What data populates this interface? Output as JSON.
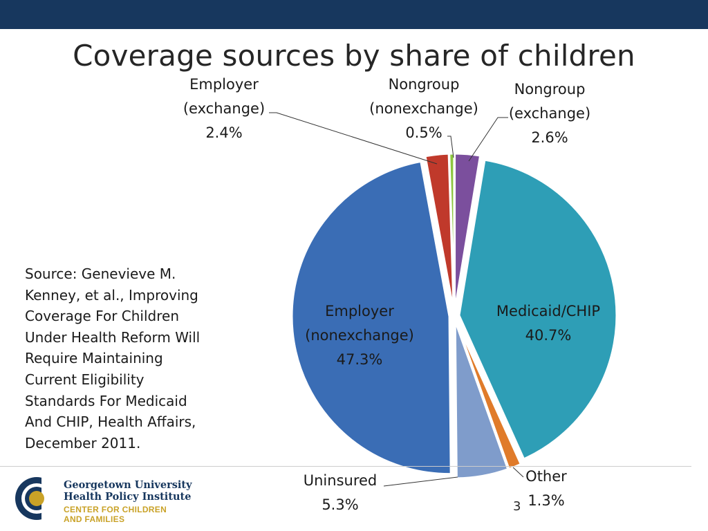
{
  "header": {
    "title": "Coverage sources by share of children"
  },
  "chart_data": {
    "type": "pie",
    "title": "Coverage sources by share of children",
    "slices": [
      {
        "label_lines": [
          "Nongroup",
          "(exchange)"
        ],
        "value": 2.6,
        "value_label": "2.6%",
        "color": "#7b4f9d"
      },
      {
        "label_lines": [
          "Medicaid/CHIP"
        ],
        "value": 40.7,
        "value_label": "40.7%",
        "color": "#2e9eb6"
      },
      {
        "label_lines": [
          "Other"
        ],
        "value": 1.3,
        "value_label": "1.3%",
        "color": "#e07b2a"
      },
      {
        "label_lines": [
          "Uninsured"
        ],
        "value": 5.3,
        "value_label": "5.3%",
        "color": "#7f9ccb"
      },
      {
        "label_lines": [
          "Employer",
          "(nonexchange)"
        ],
        "value": 47.3,
        "value_label": "47.3%",
        "color": "#3a6db5"
      },
      {
        "label_lines": [
          "Employer",
          "(exchange)"
        ],
        "value": 2.4,
        "value_label": "2.4%",
        "color": "#c0392b"
      },
      {
        "label_lines": [
          "Nongroup",
          "(nonexchange)"
        ],
        "value": 0.5,
        "value_label": "0.5%",
        "color": "#8dc63f"
      }
    ]
  },
  "source": {
    "lines": [
      "Source: Genevieve M.",
      "Kenney, et al., Improving",
      "Coverage For Children",
      "Under Health Reform Will",
      "Require Maintaining",
      "Current Eligibility",
      "Standards For Medicaid",
      "And CHIP, Health Affairs,",
      "December 2011."
    ]
  },
  "footer": {
    "page_number": "3",
    "logo_line1": "Georgetown University",
    "logo_line2": "Health Policy Institute",
    "logo_tag1": "CENTER FOR CHILDREN",
    "logo_tag2": "AND FAMILIES"
  },
  "colors": {
    "header_bar": "#17375e",
    "logo_navy": "#17375e",
    "logo_gold": "#c9a227"
  }
}
